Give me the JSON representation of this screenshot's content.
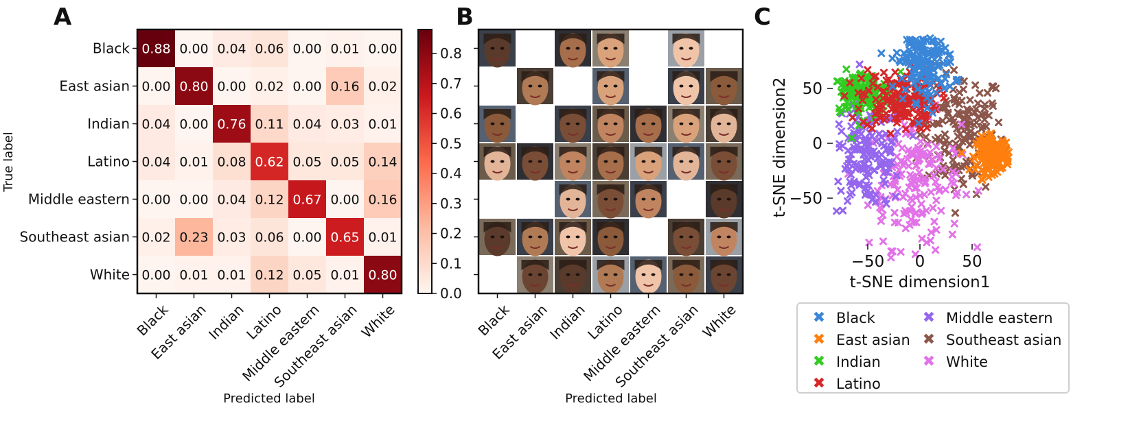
{
  "panel_labels": {
    "a": "A",
    "b": "B",
    "c": "C"
  },
  "chart_data": [
    {
      "type": "heatmap",
      "panel": "A",
      "rows": [
        "Black",
        "East asian",
        "Indian",
        "Latino",
        "Middle eastern",
        "Southeast asian",
        "White"
      ],
      "columns": [
        "Black",
        "East asian",
        "Indian",
        "Latino",
        "Middle eastern",
        "Southeast asian",
        "White"
      ],
      "values": [
        [
          "0.88",
          "0.00",
          "0.04",
          "0.06",
          "0.00",
          "0.01",
          "0.00"
        ],
        [
          "0.00",
          "0.80",
          "0.00",
          "0.02",
          "0.00",
          "0.16",
          "0.02"
        ],
        [
          "0.04",
          "0.00",
          "0.76",
          "0.11",
          "0.04",
          "0.03",
          "0.01"
        ],
        [
          "0.04",
          "0.01",
          "0.08",
          "0.62",
          "0.05",
          "0.05",
          "0.14"
        ],
        [
          "0.00",
          "0.00",
          "0.04",
          "0.12",
          "0.67",
          "0.00",
          "0.16"
        ],
        [
          "0.02",
          "0.23",
          "0.03",
          "0.06",
          "0.00",
          "0.65",
          "0.01"
        ],
        [
          "0.00",
          "0.01",
          "0.01",
          "0.12",
          "0.05",
          "0.01",
          "0.80"
        ]
      ],
      "xlabel": "Predicted label",
      "ylabel": "True label",
      "colorbar": {
        "range": [
          0,
          0.88
        ],
        "ticks": [
          "0.0",
          "0.1",
          "0.2",
          "0.3",
          "0.4",
          "0.5",
          "0.6",
          "0.7",
          "0.8"
        ],
        "colors": [
          "#fff5f0",
          "#fcbba1",
          "#fb6a4a",
          "#cb181d",
          "#67000d"
        ]
      }
    },
    {
      "type": "table",
      "panel": "B",
      "description_of_cells": "grid of face photographs, true label rows x predicted label columns",
      "columns": [
        "Black",
        "East asian",
        "Indian",
        "Latino",
        "Middle eastern",
        "Southeast asian",
        "White"
      ],
      "face_present": [
        [
          1,
          0,
          1,
          1,
          0,
          1,
          0
        ],
        [
          0,
          1,
          0,
          1,
          0,
          1,
          1
        ],
        [
          1,
          0,
          1,
          1,
          1,
          1,
          1
        ],
        [
          1,
          1,
          1,
          1,
          1,
          1,
          1
        ],
        [
          0,
          0,
          1,
          1,
          1,
          0,
          1
        ],
        [
          1,
          1,
          1,
          1,
          0,
          1,
          1
        ],
        [
          0,
          1,
          1,
          1,
          1,
          1,
          1
        ]
      ],
      "xlabel": "Predicted label"
    },
    {
      "type": "scatter",
      "panel": "C",
      "xlabel": "t-SNE dimension1",
      "ylabel": "t-SNE dimension2",
      "xlim": [
        -110,
        95
      ],
      "ylim": [
        -110,
        95
      ],
      "xticks": [
        "−50",
        "0",
        "50"
      ],
      "yticks": [
        "50",
        "0",
        "−50"
      ],
      "marker": "x",
      "series": [
        {
          "name": "Black",
          "color": "#3a86d8",
          "center": [
            5,
            75
          ],
          "spread": [
            14,
            18
          ]
        },
        {
          "name": "East asian",
          "color": "#ff7f0e",
          "center": [
            70,
            -10
          ],
          "spread": [
            8,
            8
          ]
        },
        {
          "name": "Indian",
          "color": "#33cc22",
          "center": [
            -55,
            45
          ],
          "spread": [
            18,
            10
          ]
        },
        {
          "name": "Latino",
          "color": "#d62728",
          "center": [
            -20,
            40
          ],
          "spread": [
            18,
            14
          ]
        },
        {
          "name": "Middle eastern",
          "color": "#9467ee",
          "center": [
            -50,
            -10
          ],
          "spread": [
            18,
            25
          ]
        },
        {
          "name": "Southeast asian",
          "color": "#8c564b",
          "center": [
            40,
            10
          ],
          "spread": [
            20,
            28
          ]
        },
        {
          "name": "White",
          "color": "#e272e8",
          "center": [
            -5,
            -35
          ],
          "spread": [
            22,
            30
          ]
        }
      ],
      "legend": {
        "placement": "bottom",
        "columns": 2
      }
    }
  ]
}
